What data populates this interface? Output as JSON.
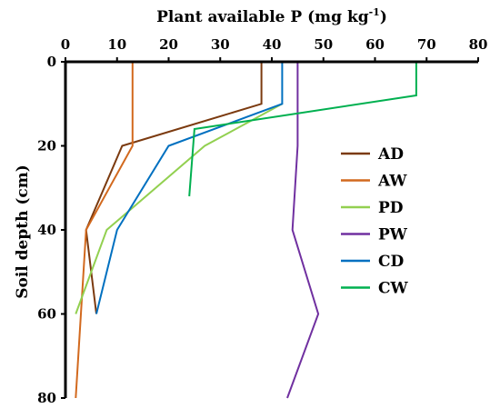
{
  "chart_data": {
    "type": "line",
    "orientation": "depth-profile",
    "title": "",
    "xlabel": {
      "text": "Plant available P (mg kg",
      "superscript": "-1",
      "suffix": ")"
    },
    "ylabel": "Soil depth (cm)",
    "xlim": [
      0,
      80
    ],
    "ylim": [
      0,
      80
    ],
    "y_inverted": true,
    "x_axis_position": "top",
    "x_ticks": [
      0,
      10,
      20,
      30,
      40,
      50,
      60,
      70,
      80
    ],
    "y_ticks": [
      0,
      20,
      40,
      60,
      80
    ],
    "grid": false,
    "legend_position": "right",
    "series": [
      {
        "name": "AD",
        "color": "#7b3a0f",
        "points": [
          {
            "x": 38,
            "y": 0
          },
          {
            "x": 38,
            "y": 10
          },
          {
            "x": 11,
            "y": 20
          },
          {
            "x": 4,
            "y": 40
          },
          {
            "x": 6,
            "y": 60
          }
        ]
      },
      {
        "name": "AW",
        "color": "#d2691e",
        "points": [
          {
            "x": 13,
            "y": 0
          },
          {
            "x": 13,
            "y": 20
          },
          {
            "x": 4,
            "y": 40
          },
          {
            "x": 2,
            "y": 80
          }
        ]
      },
      {
        "name": "PD",
        "color": "#92d050",
        "points": [
          {
            "x": 42,
            "y": 10
          },
          {
            "x": 27,
            "y": 20
          },
          {
            "x": 8,
            "y": 40
          },
          {
            "x": 2,
            "y": 60
          }
        ]
      },
      {
        "name": "PW",
        "color": "#7030a0",
        "points": [
          {
            "x": 45,
            "y": 0
          },
          {
            "x": 45,
            "y": 20
          },
          {
            "x": 44,
            "y": 40
          },
          {
            "x": 49,
            "y": 60
          },
          {
            "x": 43,
            "y": 80
          }
        ]
      },
      {
        "name": "CD",
        "color": "#0070c0",
        "points": [
          {
            "x": 42,
            "y": 0
          },
          {
            "x": 42,
            "y": 10
          },
          {
            "x": 20,
            "y": 20
          },
          {
            "x": 10,
            "y": 40
          },
          {
            "x": 6,
            "y": 60
          }
        ]
      },
      {
        "name": "CW",
        "color": "#00b050",
        "points": [
          {
            "x": 68,
            "y": 0
          },
          {
            "x": 68,
            "y": 8
          },
          {
            "x": 25,
            "y": 16
          },
          {
            "x": 24,
            "y": 32
          }
        ]
      }
    ]
  }
}
